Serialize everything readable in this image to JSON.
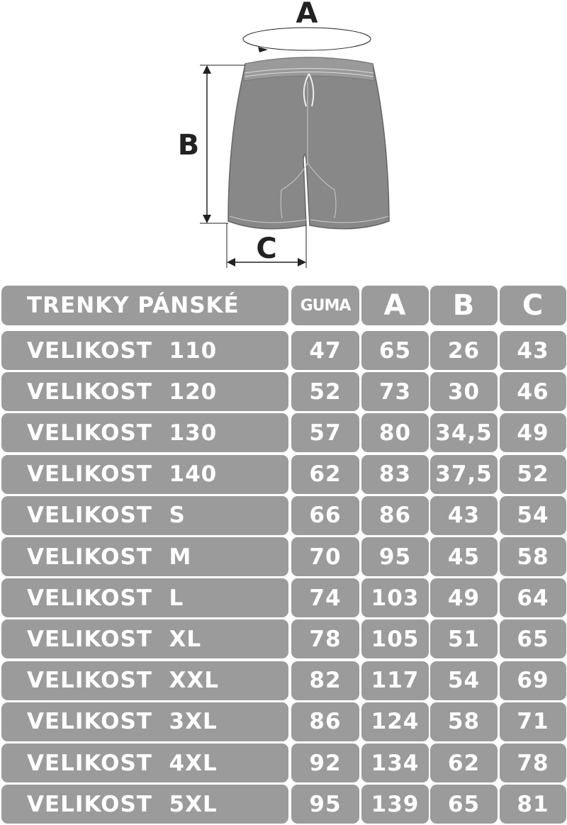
{
  "figure": {
    "label_a": "A",
    "label_b": "B",
    "label_c": "C",
    "garment_color": "#888888"
  },
  "table": {
    "headers": [
      "TRENKY PÁNSKÉ",
      "GUMA",
      "A",
      "B",
      "C"
    ],
    "rows": [
      [
        "VELIKOST  110",
        "47",
        "65",
        "26",
        "43"
      ],
      [
        "VELIKOST  120",
        "52",
        "73",
        "30",
        "46"
      ],
      [
        "VELIKOST  130",
        "57",
        "80",
        "34,5",
        "49"
      ],
      [
        "VELIKOST  140",
        "62",
        "83",
        "37,5",
        "52"
      ],
      [
        "VELIKOST  S",
        "66",
        "86",
        "43",
        "54"
      ],
      [
        "VELIKOST  M",
        "70",
        "95",
        "45",
        "58"
      ],
      [
        "VELIKOST  L",
        "74",
        "103",
        "49",
        "64"
      ],
      [
        "VELIKOST  XL",
        "78",
        "105",
        "51",
        "65"
      ],
      [
        "VELIKOST  XXL",
        "82",
        "117",
        "54",
        "69"
      ],
      [
        "VELIKOST  3XL",
        "86",
        "124",
        "58",
        "71"
      ],
      [
        "VELIKOST  4XL",
        "92",
        "134",
        "62",
        "78"
      ],
      [
        "VELIKOST  5XL",
        "95",
        "139",
        "65",
        "81"
      ]
    ],
    "cell_color": "#9b9b9b"
  }
}
